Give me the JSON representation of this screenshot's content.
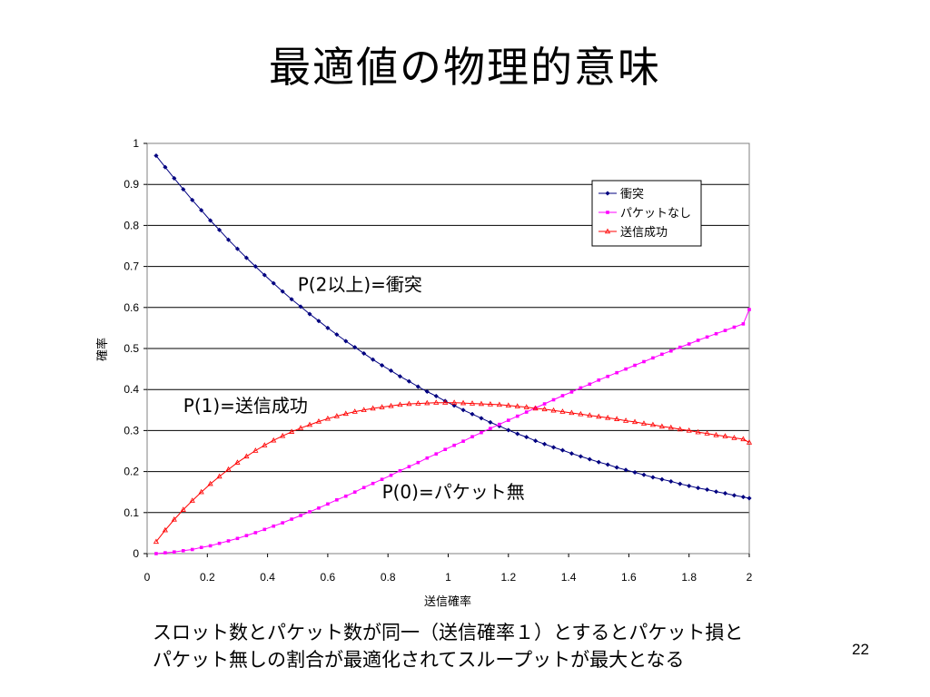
{
  "slide": {
    "title": "最適値の物理的意味",
    "caption_line1": "スロット数とパケット数が同一（送信確率１）とするとパケット損と",
    "caption_line2": "パケット無しの割合が最適化されてスループットが最大となる",
    "page_number": "22"
  },
  "chart_data": {
    "type": "line",
    "xlabel": "送信確率",
    "ylabel": "確率",
    "xlim": [
      0,
      2
    ],
    "ylim": [
      0,
      1
    ],
    "x_ticks": [
      "0",
      "0.2",
      "0.4",
      "0.6",
      "0.8",
      "1",
      "1.2",
      "1.4",
      "1.6",
      "1.8",
      "2"
    ],
    "y_ticks": [
      "0",
      "0.1",
      "0.2",
      "0.3",
      "0.4",
      "0.5",
      "0.6",
      "0.7",
      "0.8",
      "0.9",
      "1"
    ],
    "grid": "horizontal",
    "legend_position": "top-right",
    "series": [
      {
        "name": "衝突",
        "color": "#000080",
        "marker": "diamond",
        "x": [
          0.03,
          0.06,
          0.09,
          0.12,
          0.15,
          0.18,
          0.21,
          0.24,
          0.27,
          0.3,
          0.33,
          0.36,
          0.39,
          0.42,
          0.45,
          0.48,
          0.51,
          0.54,
          0.57,
          0.6,
          0.63,
          0.66,
          0.69,
          0.72,
          0.75,
          0.78,
          0.81,
          0.84,
          0.87,
          0.9,
          0.93,
          0.96,
          0.99,
          1.02,
          1.05,
          1.08,
          1.11,
          1.14,
          1.17,
          1.2,
          1.23,
          1.26,
          1.29,
          1.32,
          1.35,
          1.38,
          1.41,
          1.44,
          1.47,
          1.5,
          1.53,
          1.56,
          1.59,
          1.62,
          1.65,
          1.68,
          1.71,
          1.74,
          1.77,
          1.8,
          1.83,
          1.86,
          1.89,
          1.92,
          1.95,
          1.98,
          2.0
        ],
        "values": [
          0.97,
          0.942,
          0.915,
          0.888,
          0.862,
          0.837,
          0.812,
          0.789,
          0.765,
          0.743,
          0.721,
          0.7,
          0.679,
          0.659,
          0.639,
          0.62,
          0.602,
          0.584,
          0.567,
          0.55,
          0.534,
          0.518,
          0.503,
          0.488,
          0.473,
          0.459,
          0.446,
          0.432,
          0.42,
          0.407,
          0.395,
          0.384,
          0.372,
          0.361,
          0.35,
          0.34,
          0.33,
          0.32,
          0.311,
          0.301,
          0.292,
          0.284,
          0.275,
          0.267,
          0.259,
          0.252,
          0.244,
          0.237,
          0.23,
          0.223,
          0.217,
          0.21,
          0.204,
          0.198,
          0.192,
          0.186,
          0.181,
          0.176,
          0.17,
          0.165,
          0.16,
          0.156,
          0.151,
          0.147,
          0.142,
          0.138,
          0.135
        ]
      },
      {
        "name": "パケットなし",
        "color": "#ff00ff",
        "marker": "square",
        "x": [
          0.03,
          0.06,
          0.09,
          0.12,
          0.15,
          0.18,
          0.21,
          0.24,
          0.27,
          0.3,
          0.33,
          0.36,
          0.39,
          0.42,
          0.45,
          0.48,
          0.51,
          0.54,
          0.57,
          0.6,
          0.63,
          0.66,
          0.69,
          0.72,
          0.75,
          0.78,
          0.81,
          0.84,
          0.87,
          0.9,
          0.93,
          0.96,
          0.99,
          1.02,
          1.05,
          1.08,
          1.11,
          1.14,
          1.17,
          1.2,
          1.23,
          1.26,
          1.29,
          1.32,
          1.35,
          1.38,
          1.41,
          1.44,
          1.47,
          1.5,
          1.53,
          1.56,
          1.59,
          1.62,
          1.65,
          1.68,
          1.71,
          1.74,
          1.77,
          1.8,
          1.83,
          1.86,
          1.89,
          1.92,
          1.95,
          1.98,
          2.0
        ],
        "values": [
          0.0,
          0.002,
          0.004,
          0.007,
          0.01,
          0.015,
          0.019,
          0.025,
          0.031,
          0.037,
          0.044,
          0.051,
          0.059,
          0.067,
          0.075,
          0.084,
          0.093,
          0.102,
          0.111,
          0.121,
          0.131,
          0.14,
          0.15,
          0.161,
          0.171,
          0.181,
          0.191,
          0.202,
          0.212,
          0.222,
          0.233,
          0.243,
          0.254,
          0.264,
          0.274,
          0.285,
          0.295,
          0.305,
          0.315,
          0.325,
          0.335,
          0.345,
          0.355,
          0.365,
          0.375,
          0.385,
          0.394,
          0.404,
          0.413,
          0.423,
          0.432,
          0.441,
          0.45,
          0.459,
          0.468,
          0.477,
          0.486,
          0.494,
          0.503,
          0.511,
          0.52,
          0.528,
          0.536,
          0.544,
          0.552,
          0.56,
          0.595
        ]
      },
      {
        "name": "送信成功",
        "color": "#ff0000",
        "marker": "triangle",
        "x": [
          0.03,
          0.06,
          0.09,
          0.12,
          0.15,
          0.18,
          0.21,
          0.24,
          0.27,
          0.3,
          0.33,
          0.36,
          0.39,
          0.42,
          0.45,
          0.48,
          0.51,
          0.54,
          0.57,
          0.6,
          0.63,
          0.66,
          0.69,
          0.72,
          0.75,
          0.78,
          0.81,
          0.84,
          0.87,
          0.9,
          0.93,
          0.96,
          0.99,
          1.02,
          1.05,
          1.08,
          1.11,
          1.14,
          1.17,
          1.2,
          1.23,
          1.26,
          1.29,
          1.32,
          1.35,
          1.38,
          1.41,
          1.44,
          1.47,
          1.5,
          1.53,
          1.56,
          1.59,
          1.62,
          1.65,
          1.68,
          1.71,
          1.74,
          1.77,
          1.8,
          1.83,
          1.86,
          1.89,
          1.92,
          1.95,
          1.98,
          2.0
        ],
        "values": [
          0.029,
          0.057,
          0.083,
          0.107,
          0.129,
          0.15,
          0.17,
          0.188,
          0.205,
          0.222,
          0.237,
          0.251,
          0.264,
          0.276,
          0.287,
          0.297,
          0.306,
          0.314,
          0.322,
          0.329,
          0.335,
          0.341,
          0.346,
          0.35,
          0.354,
          0.357,
          0.36,
          0.363,
          0.365,
          0.366,
          0.367,
          0.368,
          0.368,
          0.368,
          0.367,
          0.366,
          0.365,
          0.364,
          0.363,
          0.361,
          0.359,
          0.357,
          0.354,
          0.352,
          0.349,
          0.346,
          0.343,
          0.34,
          0.337,
          0.334,
          0.331,
          0.328,
          0.324,
          0.321,
          0.317,
          0.314,
          0.31,
          0.307,
          0.303,
          0.3,
          0.296,
          0.293,
          0.289,
          0.286,
          0.282,
          0.279,
          0.271
        ]
      }
    ],
    "annotations": [
      {
        "text": "P(2以上)=衝突",
        "x": 0.5,
        "y": 0.64
      },
      {
        "text": "P(1)=送信成功",
        "x": 0.12,
        "y": 0.345
      },
      {
        "text": "P(0)=パケット無",
        "x": 0.78,
        "y": 0.135
      }
    ]
  }
}
